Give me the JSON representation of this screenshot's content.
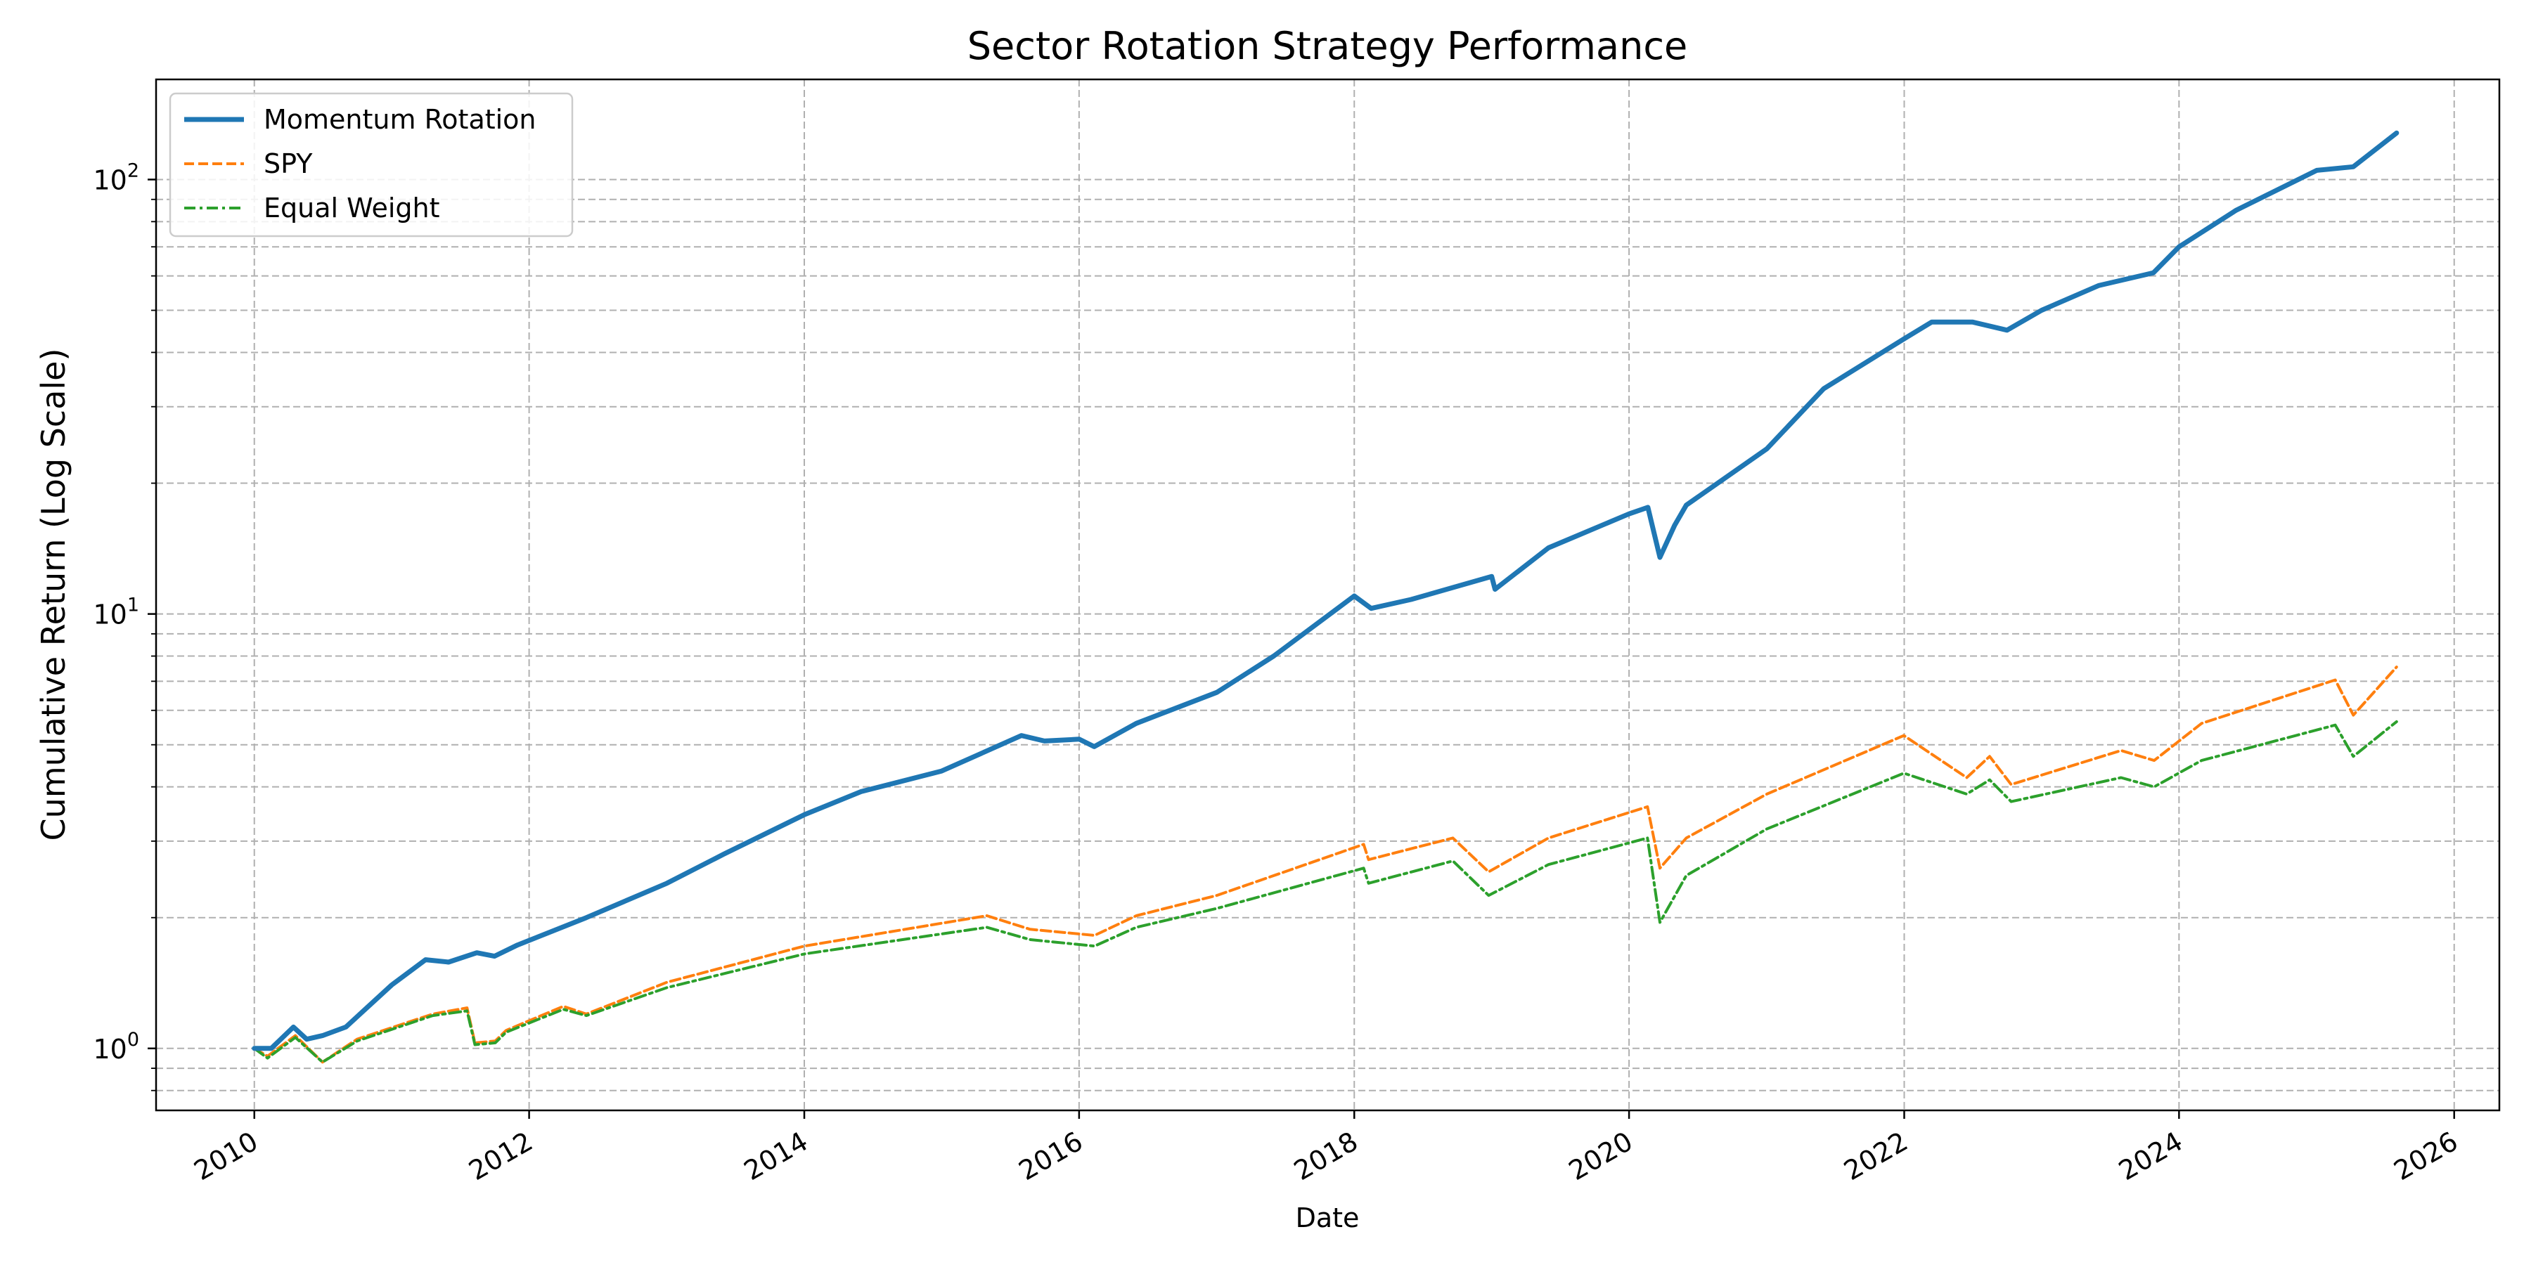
{
  "chart_data": {
    "type": "line",
    "title": "Sector Rotation Strategy Performance",
    "xlabel": "Date",
    "ylabel": "Cumulative Return (Log Scale)",
    "yscale": "log",
    "ylim": [
      0.72,
      170
    ],
    "xlim": [
      "2009-04-15",
      "2026-05-01"
    ],
    "grid": true,
    "legend_position": "upper-left",
    "x_ticks": [
      "2010",
      "2012",
      "2014",
      "2016",
      "2018",
      "2020",
      "2022",
      "2024",
      "2026"
    ],
    "y_ticks": [
      {
        "value": 1,
        "label": "10",
        "exp": "0"
      },
      {
        "value": 10,
        "label": "10",
        "exp": "1"
      },
      {
        "value": 100,
        "label": "10",
        "exp": "2"
      }
    ],
    "series": [
      {
        "name": "Momentum Rotation",
        "color": "#1f77b4",
        "style": "solid",
        "points": [
          [
            "2010-01-01",
            1.0
          ],
          [
            "2010-02-15",
            1.0
          ],
          [
            "2010-04-15",
            1.12
          ],
          [
            "2010-05-20",
            1.05
          ],
          [
            "2010-07-01",
            1.07
          ],
          [
            "2010-09-01",
            1.12
          ],
          [
            "2011-01-01",
            1.4
          ],
          [
            "2011-04-01",
            1.6
          ],
          [
            "2011-06-01",
            1.58
          ],
          [
            "2011-08-15",
            1.66
          ],
          [
            "2011-10-01",
            1.63
          ],
          [
            "2011-12-01",
            1.73
          ],
          [
            "2012-06-01",
            2.0
          ],
          [
            "2013-01-01",
            2.4
          ],
          [
            "2013-06-01",
            2.8
          ],
          [
            "2014-01-01",
            3.45
          ],
          [
            "2014-06-01",
            3.9
          ],
          [
            "2015-01-01",
            4.35
          ],
          [
            "2015-08-01",
            5.25
          ],
          [
            "2015-10-01",
            5.1
          ],
          [
            "2016-01-01",
            5.15
          ],
          [
            "2016-02-10",
            4.95
          ],
          [
            "2016-06-01",
            5.6
          ],
          [
            "2017-01-01",
            6.6
          ],
          [
            "2017-06-01",
            8.0
          ],
          [
            "2018-01-01",
            11.0
          ],
          [
            "2018-02-15",
            10.3
          ],
          [
            "2018-06-01",
            10.8
          ],
          [
            "2019-01-01",
            12.2
          ],
          [
            "2019-01-10",
            11.4
          ],
          [
            "2019-06-01",
            14.2
          ],
          [
            "2020-01-01",
            17.0
          ],
          [
            "2020-02-20",
            17.6
          ],
          [
            "2020-03-23",
            13.5
          ],
          [
            "2020-05-01",
            16.0
          ],
          [
            "2020-06-01",
            17.8
          ],
          [
            "2021-01-01",
            24.0
          ],
          [
            "2021-06-01",
            33.0
          ],
          [
            "2022-01-01",
            43.0
          ],
          [
            "2022-03-15",
            47.0
          ],
          [
            "2022-07-01",
            47.0
          ],
          [
            "2022-10-01",
            45.0
          ],
          [
            "2023-01-01",
            50.0
          ],
          [
            "2023-06-01",
            57.0
          ],
          [
            "2023-10-25",
            61.0
          ],
          [
            "2024-01-01",
            70.0
          ],
          [
            "2024-06-01",
            85.0
          ],
          [
            "2025-01-01",
            105.0
          ],
          [
            "2025-04-08",
            107.0
          ],
          [
            "2025-08-01",
            128.0
          ]
        ]
      },
      {
        "name": "SPY",
        "color": "#ff7f0e",
        "style": "dashed",
        "points": [
          [
            "2010-01-01",
            1.0
          ],
          [
            "2010-02-05",
            0.96
          ],
          [
            "2010-04-20",
            1.07
          ],
          [
            "2010-07-01",
            0.93
          ],
          [
            "2010-10-01",
            1.05
          ],
          [
            "2011-04-20",
            1.2
          ],
          [
            "2011-07-20",
            1.24
          ],
          [
            "2011-08-10",
            1.03
          ],
          [
            "2011-10-03",
            1.04
          ],
          [
            "2011-11-01",
            1.1
          ],
          [
            "2012-04-01",
            1.25
          ],
          [
            "2012-06-01",
            1.2
          ],
          [
            "2013-01-01",
            1.42
          ],
          [
            "2014-01-01",
            1.72
          ],
          [
            "2015-05-01",
            2.02
          ],
          [
            "2015-08-24",
            1.88
          ],
          [
            "2016-02-11",
            1.82
          ],
          [
            "2016-06-01",
            2.02
          ],
          [
            "2017-01-01",
            2.25
          ],
          [
            "2018-01-26",
            2.95
          ],
          [
            "2018-02-08",
            2.72
          ],
          [
            "2018-09-20",
            3.05
          ],
          [
            "2018-12-24",
            2.55
          ],
          [
            "2019-06-01",
            3.05
          ],
          [
            "2020-02-19",
            3.6
          ],
          [
            "2020-03-23",
            2.6
          ],
          [
            "2020-06-01",
            3.05
          ],
          [
            "2021-01-01",
            3.85
          ],
          [
            "2021-12-31",
            5.25
          ],
          [
            "2022-06-16",
            4.2
          ],
          [
            "2022-08-16",
            4.7
          ],
          [
            "2022-10-12",
            4.05
          ],
          [
            "2023-07-31",
            4.85
          ],
          [
            "2023-10-27",
            4.6
          ],
          [
            "2024-03-01",
            5.6
          ],
          [
            "2025-02-19",
            7.05
          ],
          [
            "2025-04-08",
            5.85
          ],
          [
            "2025-08-01",
            7.55
          ]
        ]
      },
      {
        "name": "Equal Weight",
        "color": "#2ca02c",
        "style": "dashdot",
        "points": [
          [
            "2010-01-01",
            1.0
          ],
          [
            "2010-02-05",
            0.95
          ],
          [
            "2010-04-20",
            1.06
          ],
          [
            "2010-07-01",
            0.93
          ],
          [
            "2010-10-01",
            1.04
          ],
          [
            "2011-04-20",
            1.19
          ],
          [
            "2011-07-20",
            1.22
          ],
          [
            "2011-08-10",
            1.02
          ],
          [
            "2011-10-03",
            1.03
          ],
          [
            "2011-11-01",
            1.09
          ],
          [
            "2012-04-01",
            1.23
          ],
          [
            "2012-06-01",
            1.19
          ],
          [
            "2013-01-01",
            1.38
          ],
          [
            "2014-01-01",
            1.65
          ],
          [
            "2015-05-01",
            1.9
          ],
          [
            "2015-08-24",
            1.78
          ],
          [
            "2016-02-11",
            1.72
          ],
          [
            "2016-06-01",
            1.9
          ],
          [
            "2017-01-01",
            2.1
          ],
          [
            "2018-01-26",
            2.6
          ],
          [
            "2018-02-08",
            2.4
          ],
          [
            "2018-09-20",
            2.7
          ],
          [
            "2018-12-24",
            2.25
          ],
          [
            "2019-06-01",
            2.65
          ],
          [
            "2020-02-19",
            3.05
          ],
          [
            "2020-03-23",
            1.95
          ],
          [
            "2020-06-01",
            2.5
          ],
          [
            "2021-01-01",
            3.2
          ],
          [
            "2021-12-31",
            4.3
          ],
          [
            "2022-06-16",
            3.85
          ],
          [
            "2022-08-16",
            4.15
          ],
          [
            "2022-10-12",
            3.7
          ],
          [
            "2023-07-31",
            4.2
          ],
          [
            "2023-10-27",
            4.0
          ],
          [
            "2024-03-01",
            4.6
          ],
          [
            "2025-02-19",
            5.55
          ],
          [
            "2025-04-08",
            4.7
          ],
          [
            "2025-08-01",
            5.65
          ]
        ]
      }
    ]
  }
}
